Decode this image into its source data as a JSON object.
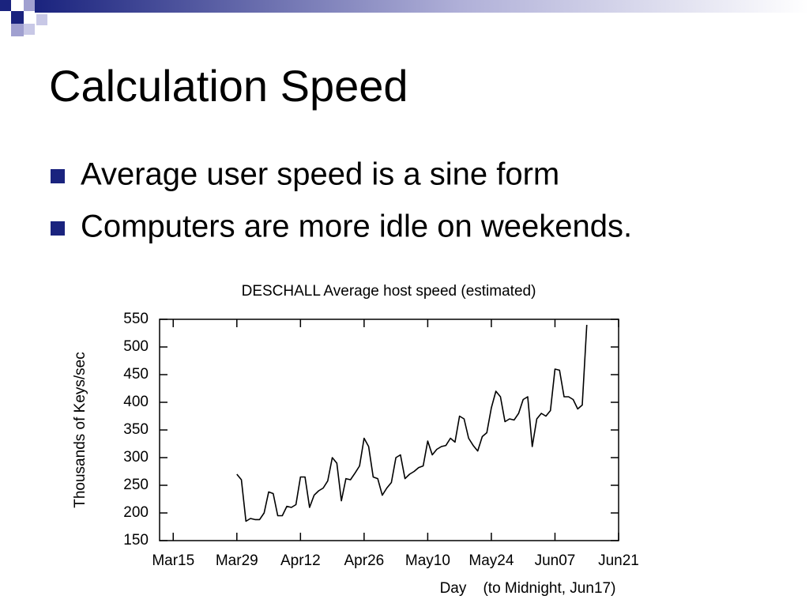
{
  "header": {
    "title": "Calculation Speed"
  },
  "bullets": [
    "Average user speed is a sine form",
    "Computers are more idle on weekends."
  ],
  "chart_data": {
    "type": "line",
    "title": "DESCHALL Average host speed (estimated)",
    "y_label": "Thousands of Keys/sec",
    "x_label": "Day    (to Midnight, Jun17)",
    "categories": [
      null,
      null,
      null,
      "Mar15",
      null,
      null,
      null,
      null,
      null,
      null,
      null,
      null,
      null,
      null,
      null,
      null,
      null,
      "Mar29",
      null,
      null,
      null,
      null,
      null,
      null,
      null,
      null,
      null,
      null,
      null,
      null,
      null,
      "Apr12",
      null,
      null,
      null,
      null,
      null,
      null,
      null,
      null,
      null,
      null,
      null,
      null,
      null,
      "Apr26",
      null,
      null,
      null,
      null,
      null,
      null,
      null,
      null,
      null,
      null,
      null,
      null,
      null,
      "May10",
      null,
      null,
      null,
      null,
      null,
      null,
      null,
      null,
      null,
      null,
      null,
      null,
      null,
      "May24",
      null,
      null,
      null,
      null,
      null,
      null,
      null,
      null,
      null,
      null,
      null,
      null,
      null,
      "Jun07",
      null,
      null,
      null,
      null,
      null,
      null,
      null,
      null,
      null,
      null,
      null,
      null,
      null,
      "Jun21"
    ],
    "series": [
      {
        "name": "Average host speed",
        "color": "#000000",
        "values": [
          null,
          null,
          null,
          null,
          null,
          null,
          null,
          null,
          null,
          null,
          null,
          null,
          null,
          null,
          null,
          null,
          null,
          270,
          260,
          185,
          190,
          188,
          188,
          200,
          238,
          235,
          195,
          195,
          212,
          210,
          215,
          265,
          265,
          210,
          232,
          240,
          245,
          258,
          300,
          290,
          222,
          262,
          260,
          272,
          285,
          335,
          320,
          265,
          262,
          232,
          245,
          255,
          300,
          305,
          262,
          270,
          275,
          282,
          285,
          330,
          305,
          315,
          320,
          322,
          335,
          328,
          375,
          370,
          335,
          322,
          312,
          338,
          345,
          390,
          420,
          410,
          365,
          370,
          368,
          380,
          405,
          410,
          320,
          370,
          380,
          375,
          385,
          460,
          458,
          410,
          410,
          405,
          388,
          395,
          540,
          null,
          null,
          null,
          null,
          null,
          null,
          null
        ]
      }
    ],
    "ylim": [
      150,
      550
    ],
    "yticks": [
      150,
      200,
      250,
      300,
      350,
      400,
      450,
      500,
      550
    ],
    "grid": false
  }
}
